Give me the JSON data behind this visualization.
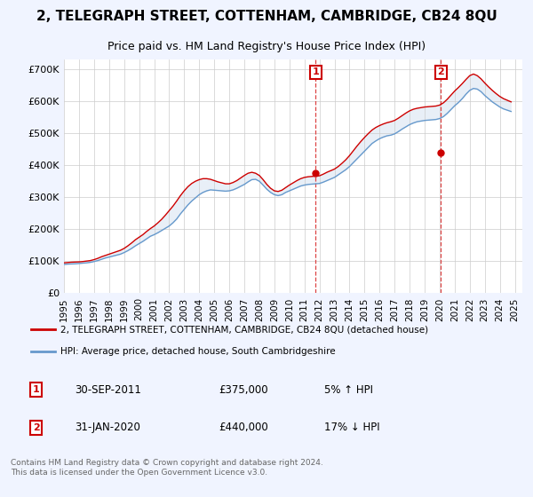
{
  "title": "2, TELEGRAPH STREET, COTTENHAM, CAMBRIDGE, CB24 8QU",
  "subtitle": "Price paid vs. HM Land Registry's House Price Index (HPI)",
  "title_fontsize": 11,
  "subtitle_fontsize": 9,
  "background_color": "#f0f4ff",
  "plot_bg_color": "#ffffff",
  "yticks": [
    0,
    100000,
    200000,
    300000,
    400000,
    500000,
    600000,
    700000
  ],
  "ytick_labels": [
    "£0",
    "£100K",
    "£200K",
    "£300K",
    "£400K",
    "£500K",
    "£600K",
    "£700K"
  ],
  "ylim": [
    0,
    730000
  ],
  "xlim_start": 1995.0,
  "xlim_end": 2025.5,
  "marker1_x": 2011.75,
  "marker1_label": "1",
  "marker2_x": 2020.08,
  "marker2_label": "2",
  "sale1_date": "30-SEP-2011",
  "sale1_price": "£375,000",
  "sale1_hpi": "5% ↑ HPI",
  "sale2_date": "31-JAN-2020",
  "sale2_price": "£440,000",
  "sale2_hpi": "17% ↓ HPI",
  "legend_line1": "2, TELEGRAPH STREET, COTTENHAM, CAMBRIDGE, CB24 8QU (detached house)",
  "legend_line2": "HPI: Average price, detached house, South Cambridgeshire",
  "line1_color": "#cc0000",
  "line2_color": "#6699cc",
  "marker_color": "#cc0000",
  "vline_color": "#dd4444",
  "footer": "Contains HM Land Registry data © Crown copyright and database right 2024.\nThis data is licensed under the Open Government Licence v3.0.",
  "hpi_years": [
    1995.0,
    1995.25,
    1995.5,
    1995.75,
    1996.0,
    1996.25,
    1996.5,
    1996.75,
    1997.0,
    1997.25,
    1997.5,
    1997.75,
    1998.0,
    1998.25,
    1998.5,
    1998.75,
    1999.0,
    1999.25,
    1999.5,
    1999.75,
    2000.0,
    2000.25,
    2000.5,
    2000.75,
    2001.0,
    2001.25,
    2001.5,
    2001.75,
    2002.0,
    2002.25,
    2002.5,
    2002.75,
    2003.0,
    2003.25,
    2003.5,
    2003.75,
    2004.0,
    2004.25,
    2004.5,
    2004.75,
    2005.0,
    2005.25,
    2005.5,
    2005.75,
    2006.0,
    2006.25,
    2006.5,
    2006.75,
    2007.0,
    2007.25,
    2007.5,
    2007.75,
    2008.0,
    2008.25,
    2008.5,
    2008.75,
    2009.0,
    2009.25,
    2009.5,
    2009.75,
    2010.0,
    2010.25,
    2010.5,
    2010.75,
    2011.0,
    2011.25,
    2011.5,
    2011.75,
    2012.0,
    2012.25,
    2012.5,
    2012.75,
    2013.0,
    2013.25,
    2013.5,
    2013.75,
    2014.0,
    2014.25,
    2014.5,
    2014.75,
    2015.0,
    2015.25,
    2015.5,
    2015.75,
    2016.0,
    2016.25,
    2016.5,
    2016.75,
    2017.0,
    2017.25,
    2017.5,
    2017.75,
    2018.0,
    2018.25,
    2018.5,
    2018.75,
    2019.0,
    2019.25,
    2019.5,
    2019.75,
    2020.0,
    2020.25,
    2020.5,
    2020.75,
    2021.0,
    2021.25,
    2021.5,
    2021.75,
    2022.0,
    2022.25,
    2022.5,
    2022.75,
    2023.0,
    2023.25,
    2023.5,
    2023.75,
    2024.0,
    2024.25,
    2024.5,
    2024.75
  ],
  "hpi_values": [
    90000,
    91000,
    91500,
    92000,
    93000,
    94000,
    95000,
    96500,
    99000,
    102000,
    106000,
    110000,
    113000,
    116000,
    119000,
    122000,
    127000,
    133000,
    140000,
    148000,
    155000,
    162000,
    170000,
    178000,
    183000,
    189000,
    196000,
    203000,
    210000,
    220000,
    232000,
    248000,
    262000,
    276000,
    288000,
    298000,
    308000,
    315000,
    320000,
    323000,
    322000,
    321000,
    320000,
    319000,
    320000,
    323000,
    328000,
    334000,
    340000,
    348000,
    355000,
    356000,
    350000,
    338000,
    325000,
    315000,
    308000,
    305000,
    308000,
    315000,
    320000,
    325000,
    330000,
    335000,
    338000,
    340000,
    341000,
    342000,
    343000,
    347000,
    352000,
    357000,
    362000,
    370000,
    378000,
    386000,
    396000,
    408000,
    420000,
    432000,
    444000,
    456000,
    468000,
    476000,
    483000,
    488000,
    492000,
    494000,
    498000,
    505000,
    513000,
    520000,
    527000,
    532000,
    536000,
    538000,
    540000,
    541000,
    542000,
    543000,
    546000,
    552000,
    562000,
    574000,
    586000,
    596000,
    608000,
    622000,
    634000,
    640000,
    638000,
    630000,
    618000,
    608000,
    598000,
    590000,
    582000,
    576000,
    572000,
    568000
  ],
  "price_years": [
    1995.0,
    1995.25,
    1995.5,
    1995.75,
    1996.0,
    1996.25,
    1996.5,
    1996.75,
    1997.0,
    1997.25,
    1997.5,
    1997.75,
    1998.0,
    1998.25,
    1998.5,
    1998.75,
    1999.0,
    1999.25,
    1999.5,
    1999.75,
    2000.0,
    2000.25,
    2000.5,
    2000.75,
    2001.0,
    2001.25,
    2001.5,
    2001.75,
    2002.0,
    2002.25,
    2002.5,
    2002.75,
    2003.0,
    2003.25,
    2003.5,
    2003.75,
    2004.0,
    2004.25,
    2004.5,
    2004.75,
    2005.0,
    2005.25,
    2005.5,
    2005.75,
    2006.0,
    2006.25,
    2006.5,
    2006.75,
    2007.0,
    2007.25,
    2007.5,
    2007.75,
    2008.0,
    2008.25,
    2008.5,
    2008.75,
    2009.0,
    2009.25,
    2009.5,
    2009.75,
    2010.0,
    2010.25,
    2010.5,
    2010.75,
    2011.0,
    2011.25,
    2011.5,
    2011.75,
    2012.0,
    2012.25,
    2012.5,
    2012.75,
    2013.0,
    2013.25,
    2013.5,
    2013.75,
    2014.0,
    2014.25,
    2014.5,
    2014.75,
    2015.0,
    2015.25,
    2015.5,
    2015.75,
    2016.0,
    2016.25,
    2016.5,
    2016.75,
    2017.0,
    2017.25,
    2017.5,
    2017.75,
    2018.0,
    2018.25,
    2018.5,
    2018.75,
    2019.0,
    2019.25,
    2019.5,
    2019.75,
    2020.0,
    2020.25,
    2020.5,
    2020.75,
    2021.0,
    2021.25,
    2021.5,
    2021.75,
    2022.0,
    2022.25,
    2022.5,
    2022.75,
    2023.0,
    2023.25,
    2023.5,
    2023.75,
    2024.0,
    2024.25,
    2024.5,
    2024.75
  ],
  "price_values": [
    95000,
    96000,
    97000,
    97500,
    98000,
    99000,
    100500,
    102000,
    105000,
    109000,
    114000,
    118000,
    122000,
    126000,
    130000,
    134000,
    140000,
    148000,
    157000,
    167000,
    175000,
    183000,
    193000,
    202000,
    210000,
    220000,
    231000,
    244000,
    258000,
    272000,
    288000,
    305000,
    320000,
    333000,
    343000,
    350000,
    355000,
    358000,
    358000,
    356000,
    352000,
    348000,
    345000,
    342000,
    342000,
    346000,
    352000,
    360000,
    368000,
    375000,
    378000,
    375000,
    368000,
    355000,
    340000,
    328000,
    320000,
    318000,
    322000,
    330000,
    338000,
    345000,
    352000,
    358000,
    362000,
    364000,
    365000,
    366000,
    367000,
    372000,
    378000,
    383000,
    388000,
    396000,
    406000,
    417000,
    430000,
    445000,
    460000,
    474000,
    487000,
    499000,
    510000,
    518000,
    524000,
    529000,
    533000,
    536000,
    540000,
    547000,
    555000,
    563000,
    570000,
    575000,
    578000,
    580000,
    582000,
    583000,
    584000,
    585000,
    588000,
    595000,
    606000,
    619000,
    632000,
    643000,
    655000,
    668000,
    680000,
    685000,
    680000,
    670000,
    657000,
    645000,
    634000,
    624000,
    615000,
    608000,
    603000,
    598000
  ],
  "sale1_y": 375000,
  "sale2_y": 440000
}
